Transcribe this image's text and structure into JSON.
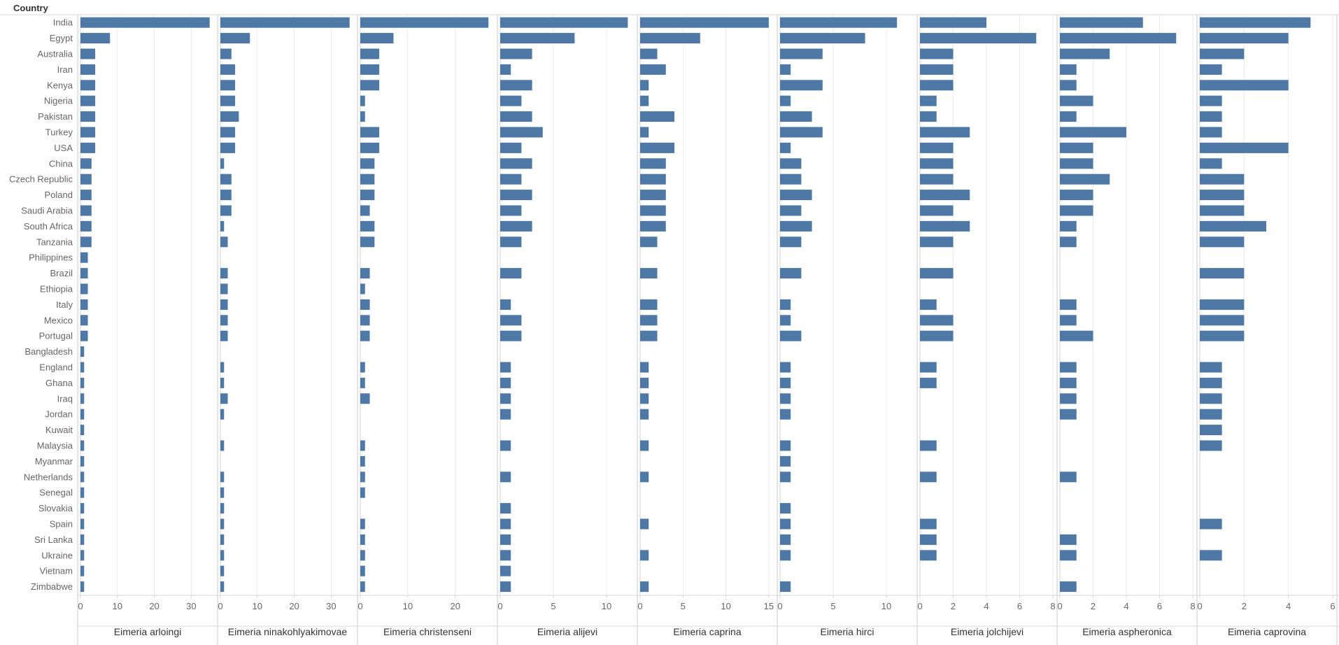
{
  "row_header": "Country",
  "colors": {
    "bar": "#4e79a7",
    "grid": "#ebebeb",
    "axis": "#d4d4d4",
    "separator": "#c8c8c8",
    "row_line": "#d8d8d8"
  },
  "chart_data": {
    "type": "bar",
    "orientation": "horizontal",
    "categories": [
      "India",
      "Egypt",
      "Australia",
      "Iran",
      "Kenya",
      "Nigeria",
      "Pakistan",
      "Turkey",
      "USA",
      "China",
      "Czech Republic",
      "Poland",
      "Saudi Arabia",
      "South Africa",
      "Tanzania",
      "Philippines",
      "Brazil",
      "Ethiopia",
      "Italy",
      "Mexico",
      "Portugal",
      "Bangladesh",
      "England",
      "Ghana",
      "Iraq",
      "Jordan",
      "Kuwait",
      "Malaysia",
      "Myanmar",
      "Netherlands",
      "Senegal",
      "Slovakia",
      "Spain",
      "Sri Lanka",
      "Ukraine",
      "Vietnam",
      "Zimbabwe"
    ],
    "series": [
      {
        "name": "Eimeria arloingi",
        "xlim": [
          0,
          36
        ],
        "ticks": [
          "0",
          "10",
          "20",
          "30"
        ],
        "tick_values": [
          0,
          10,
          20,
          30
        ],
        "values": [
          35,
          8,
          4,
          4,
          4,
          4,
          4,
          4,
          4,
          3,
          3,
          3,
          3,
          3,
          3,
          2,
          2,
          2,
          2,
          2,
          2,
          1,
          1,
          1,
          1,
          1,
          1,
          1,
          1,
          1,
          1,
          1,
          1,
          1,
          1,
          1,
          1
        ]
      },
      {
        "name": "Eimeria ninakohlyakimovae",
        "xlim": [
          0,
          36
        ],
        "ticks": [
          "0",
          "10",
          "20",
          "30"
        ],
        "tick_values": [
          0,
          10,
          20,
          30
        ],
        "values": [
          35,
          8,
          3,
          4,
          4,
          4,
          5,
          4,
          4,
          1,
          3,
          3,
          3,
          1,
          2,
          0,
          2,
          2,
          2,
          2,
          2,
          0,
          1,
          1,
          2,
          1,
          0,
          1,
          0,
          1,
          1,
          1,
          1,
          1,
          1,
          1,
          1
        ]
      },
      {
        "name": "Eimeria christenseni",
        "xlim": [
          0,
          28
        ],
        "ticks": [
          "0",
          "10",
          "20"
        ],
        "tick_values": [
          0,
          10,
          20
        ],
        "values": [
          27,
          7,
          4,
          4,
          4,
          1,
          1,
          4,
          4,
          3,
          3,
          3,
          2,
          3,
          3,
          0,
          2,
          1,
          2,
          2,
          2,
          0,
          1,
          1,
          2,
          0,
          0,
          1,
          1,
          1,
          1,
          0,
          1,
          1,
          1,
          1,
          1
        ]
      },
      {
        "name": "Eimeria alijevi",
        "xlim": [
          0,
          12.5
        ],
        "ticks": [
          "0",
          "5",
          "10"
        ],
        "tick_values": [
          0,
          5,
          10
        ],
        "values": [
          12,
          7,
          3,
          1,
          3,
          2,
          3,
          4,
          2,
          3,
          2,
          3,
          2,
          3,
          2,
          0,
          2,
          0,
          1,
          2,
          2,
          0,
          1,
          1,
          1,
          1,
          0,
          1,
          0,
          1,
          0,
          1,
          1,
          1,
          1,
          1,
          1
        ]
      },
      {
        "name": "Eimeria caprina",
        "xlim": [
          0,
          15.5
        ],
        "ticks": [
          "0",
          "5",
          "10",
          "15"
        ],
        "tick_values": [
          0,
          5,
          10,
          15
        ],
        "values": [
          15,
          7,
          2,
          3,
          1,
          1,
          4,
          1,
          4,
          3,
          3,
          3,
          3,
          3,
          2,
          0,
          2,
          0,
          2,
          2,
          2,
          0,
          1,
          1,
          1,
          1,
          0,
          1,
          0,
          1,
          0,
          0,
          1,
          0,
          1,
          0,
          1
        ]
      },
      {
        "name": "Eimeria hirci",
        "xlim": [
          0,
          12.5
        ],
        "ticks": [
          "0",
          "5",
          "10"
        ],
        "tick_values": [
          0,
          5,
          10
        ],
        "values": [
          11,
          8,
          4,
          1,
          4,
          1,
          3,
          4,
          1,
          2,
          2,
          3,
          2,
          3,
          2,
          0,
          2,
          0,
          1,
          1,
          2,
          0,
          1,
          1,
          1,
          1,
          0,
          1,
          1,
          1,
          0,
          1,
          1,
          1,
          1,
          0,
          1
        ]
      },
      {
        "name": "Eimeria jolchijevi",
        "xlim": [
          0,
          8
        ],
        "ticks": [
          "0",
          "2",
          "4",
          "6",
          "8"
        ],
        "tick_values": [
          0,
          2,
          4,
          6,
          8
        ],
        "values": [
          4,
          7,
          2,
          2,
          2,
          1,
          1,
          3,
          2,
          2,
          2,
          3,
          2,
          3,
          2,
          0,
          2,
          0,
          1,
          2,
          2,
          0,
          1,
          1,
          0,
          0,
          0,
          1,
          0,
          1,
          0,
          0,
          1,
          1,
          1,
          0,
          0
        ]
      },
      {
        "name": "Eimeria aspheronica",
        "xlim": [
          0,
          8
        ],
        "ticks": [
          "0",
          "2",
          "4",
          "6",
          "8"
        ],
        "tick_values": [
          0,
          2,
          4,
          6,
          8
        ],
        "values": [
          5,
          7,
          3,
          1,
          1,
          2,
          1,
          4,
          2,
          2,
          3,
          2,
          2,
          1,
          1,
          0,
          0,
          0,
          1,
          1,
          2,
          0,
          1,
          1,
          1,
          1,
          0,
          0,
          0,
          1,
          0,
          0,
          0,
          1,
          1,
          0,
          1
        ]
      },
      {
        "name": "Eimeria caprovina",
        "xlim": [
          0,
          6
        ],
        "ticks": [
          "0",
          "2",
          "4",
          "6"
        ],
        "tick_values": [
          0,
          2,
          4,
          6
        ],
        "values": [
          5,
          4,
          2,
          1,
          4,
          1,
          1,
          1,
          4,
          1,
          2,
          2,
          2,
          3,
          2,
          0,
          2,
          0,
          2,
          2,
          2,
          0,
          1,
          1,
          1,
          1,
          1,
          1,
          0,
          0,
          0,
          0,
          1,
          0,
          1,
          0,
          0
        ]
      }
    ]
  }
}
